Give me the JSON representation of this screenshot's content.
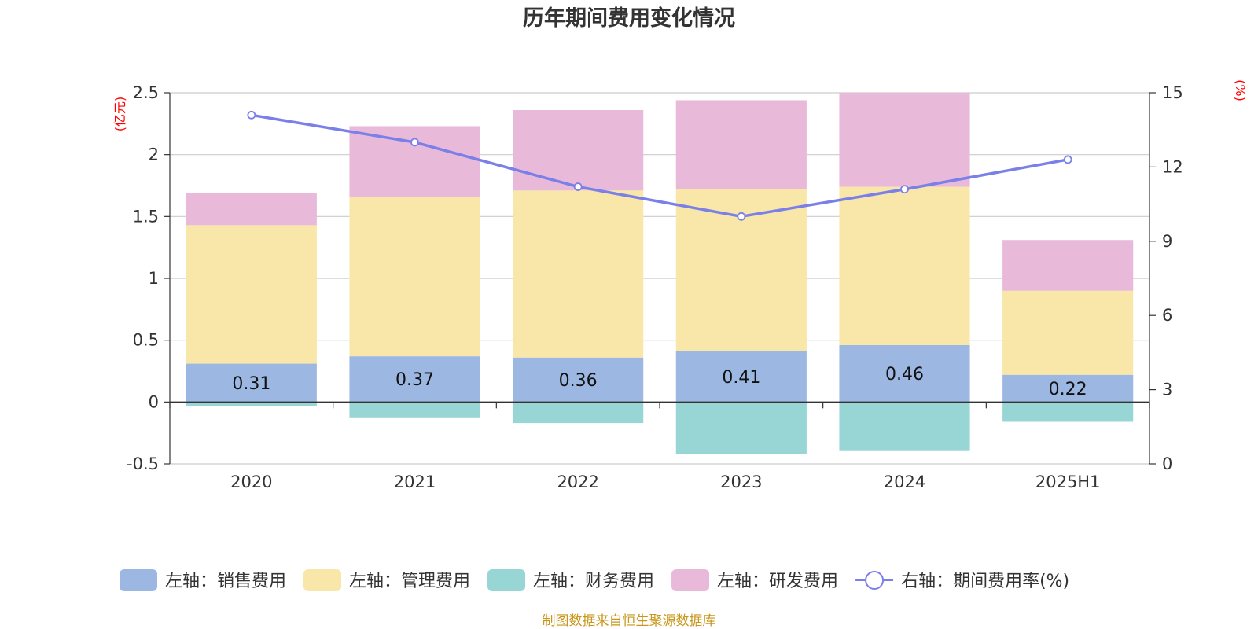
{
  "chart_data": {
    "type": "bar",
    "stacked": true,
    "title": "历年期间费用变化情况",
    "categories": [
      "2020",
      "2021",
      "2022",
      "2023",
      "2024",
      "2025H1"
    ],
    "left_axis": {
      "unit": "(亿元)",
      "ylim": [
        -0.5,
        2.5
      ],
      "ticks": [
        "-0.5",
        "0",
        "0.5",
        "1",
        "1.5",
        "2",
        "2.5"
      ]
    },
    "right_axis": {
      "unit": "(%)",
      "ylim": [
        0,
        15
      ],
      "ticks": [
        "0",
        "3",
        "6",
        "9",
        "12",
        "15"
      ]
    },
    "grid": true,
    "legend_position": "bottom",
    "series": [
      {
        "name": "左轴：销售费用",
        "color": "#9cb8e2",
        "values": [
          0.31,
          0.37,
          0.36,
          0.41,
          0.46,
          0.22
        ],
        "show_labels": true
      },
      {
        "name": "左轴：管理费用",
        "color": "#f8e7a8",
        "values": [
          1.12,
          1.29,
          1.35,
          1.31,
          1.28,
          0.68
        ]
      },
      {
        "name": "左轴：财务费用",
        "color": "#98d5d5",
        "values": [
          -0.03,
          -0.13,
          -0.17,
          -0.42,
          -0.39,
          -0.16
        ]
      },
      {
        "name": "左轴：研发费用",
        "color": "#e8b9d9",
        "values": [
          0.26,
          0.57,
          0.65,
          0.72,
          0.76,
          0.41
        ]
      }
    ],
    "line": {
      "name": "右轴：期间费用率(%)",
      "color": "#7b7fe8",
      "axis": "right",
      "values": [
        14.1,
        13.0,
        11.2,
        10.0,
        11.1,
        12.3
      ]
    }
  },
  "footer": {
    "source": "制图数据来自恒生聚源数据库"
  }
}
